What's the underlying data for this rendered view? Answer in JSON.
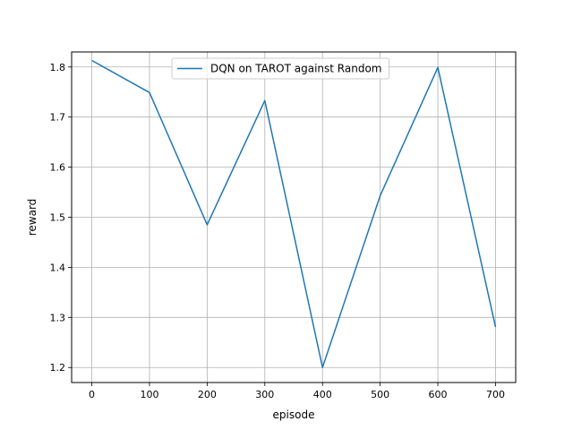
{
  "chart_data": {
    "type": "line",
    "title": "",
    "xlabel": "episode",
    "ylabel": "reward",
    "xlim": [
      -35,
      735
    ],
    "ylim": [
      1.17,
      1.83
    ],
    "xticks": [
      0,
      100,
      200,
      300,
      400,
      500,
      600,
      700
    ],
    "yticks": [
      1.2,
      1.3,
      1.4,
      1.5,
      1.6,
      1.7,
      1.8
    ],
    "grid": true,
    "legend_position": "upper center",
    "series": [
      {
        "name": "DQN on TAROT against Random",
        "color": "#1f77b4",
        "x": [
          0,
          100,
          200,
          300,
          400,
          500,
          600,
          700
        ],
        "y": [
          1.813,
          1.749,
          1.485,
          1.733,
          1.2,
          1.543,
          1.799,
          1.281
        ]
      }
    ]
  }
}
